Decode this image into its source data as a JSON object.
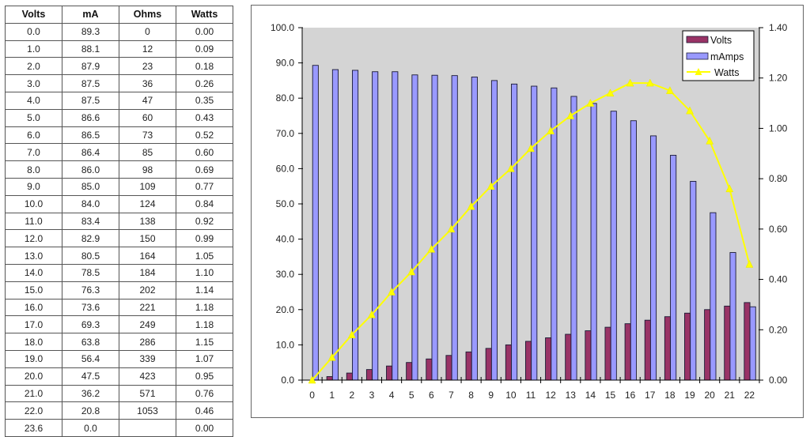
{
  "table": {
    "headers": [
      "Volts",
      "mA",
      "Ohms",
      "Watts"
    ],
    "rows": [
      [
        "0.0",
        "89.3",
        "0",
        "0.00"
      ],
      [
        "1.0",
        "88.1",
        "12",
        "0.09"
      ],
      [
        "2.0",
        "87.9",
        "23",
        "0.18"
      ],
      [
        "3.0",
        "87.5",
        "36",
        "0.26"
      ],
      [
        "4.0",
        "87.5",
        "47",
        "0.35"
      ],
      [
        "5.0",
        "86.6",
        "60",
        "0.43"
      ],
      [
        "6.0",
        "86.5",
        "73",
        "0.52"
      ],
      [
        "7.0",
        "86.4",
        "85",
        "0.60"
      ],
      [
        "8.0",
        "86.0",
        "98",
        "0.69"
      ],
      [
        "9.0",
        "85.0",
        "109",
        "0.77"
      ],
      [
        "10.0",
        "84.0",
        "124",
        "0.84"
      ],
      [
        "11.0",
        "83.4",
        "138",
        "0.92"
      ],
      [
        "12.0",
        "82.9",
        "150",
        "0.99"
      ],
      [
        "13.0",
        "80.5",
        "164",
        "1.05"
      ],
      [
        "14.0",
        "78.5",
        "184",
        "1.10"
      ],
      [
        "15.0",
        "76.3",
        "202",
        "1.14"
      ],
      [
        "16.0",
        "73.6",
        "221",
        "1.18"
      ],
      [
        "17.0",
        "69.3",
        "249",
        "1.18"
      ],
      [
        "18.0",
        "63.8",
        "286",
        "1.15"
      ],
      [
        "19.0",
        "56.4",
        "339",
        "1.07"
      ],
      [
        "20.0",
        "47.5",
        "423",
        "0.95"
      ],
      [
        "21.0",
        "36.2",
        "571",
        "0.76"
      ],
      [
        "22.0",
        "20.8",
        "1053",
        "0.46"
      ],
      [
        "23.6",
        "0.0",
        "",
        "0.00"
      ]
    ]
  },
  "chart_data": {
    "type": "bar",
    "title": "",
    "xlabel": "",
    "ylabel": "",
    "categories": [
      "0",
      "1",
      "2",
      "3",
      "4",
      "5",
      "6",
      "7",
      "8",
      "9",
      "10",
      "11",
      "12",
      "13",
      "14",
      "15",
      "16",
      "17",
      "18",
      "19",
      "20",
      "21",
      "22"
    ],
    "series": [
      {
        "name": "Volts",
        "type": "bar",
        "axis": "left",
        "color": "#993366",
        "values": [
          0,
          1,
          2,
          3,
          4,
          5,
          6,
          7,
          8,
          9,
          10,
          11,
          12,
          13,
          14,
          15,
          16,
          17,
          18,
          19,
          20,
          21,
          22
        ]
      },
      {
        "name": "mAmps",
        "type": "bar",
        "axis": "left",
        "color": "#9999FF",
        "values": [
          89.3,
          88.1,
          87.9,
          87.5,
          87.5,
          86.6,
          86.5,
          86.4,
          86.0,
          85.0,
          84.0,
          83.4,
          82.9,
          80.5,
          78.5,
          76.3,
          73.6,
          69.3,
          63.8,
          56.4,
          47.5,
          36.2,
          20.8
        ]
      },
      {
        "name": "Watts",
        "type": "line",
        "axis": "right",
        "color": "#FFFF00",
        "values": [
          0.0,
          0.09,
          0.18,
          0.26,
          0.35,
          0.43,
          0.52,
          0.6,
          0.69,
          0.77,
          0.84,
          0.92,
          0.99,
          1.05,
          1.1,
          1.14,
          1.18,
          1.18,
          1.15,
          1.07,
          0.95,
          0.76,
          0.46
        ]
      }
    ],
    "ylim": [
      0,
      100
    ],
    "ylim_right": [
      0,
      1.4
    ],
    "y_ticks": [
      "0.0",
      "10.0",
      "20.0",
      "30.0",
      "40.0",
      "50.0",
      "60.0",
      "70.0",
      "80.0",
      "90.0",
      "100.0"
    ],
    "y_right_ticks": [
      "0.00",
      "0.20",
      "0.40",
      "0.60",
      "0.80",
      "1.00",
      "1.20",
      "1.40"
    ],
    "grid": false,
    "plot_background": "#D4D4D4",
    "legend": {
      "position": "top-right",
      "entries": [
        "Volts",
        "mAmps",
        "Watts"
      ]
    }
  }
}
